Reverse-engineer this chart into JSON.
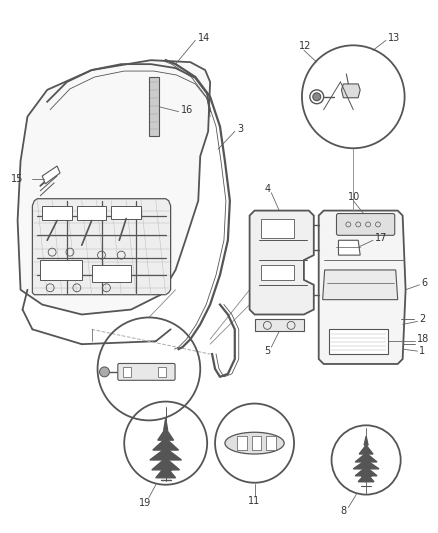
{
  "bg_color": "#ffffff",
  "line_color": "#555555",
  "dark_color": "#333333",
  "label_color": "#333333",
  "figsize": [
    4.38,
    5.33
  ],
  "dpi": 100,
  "label_fs": 7.0
}
